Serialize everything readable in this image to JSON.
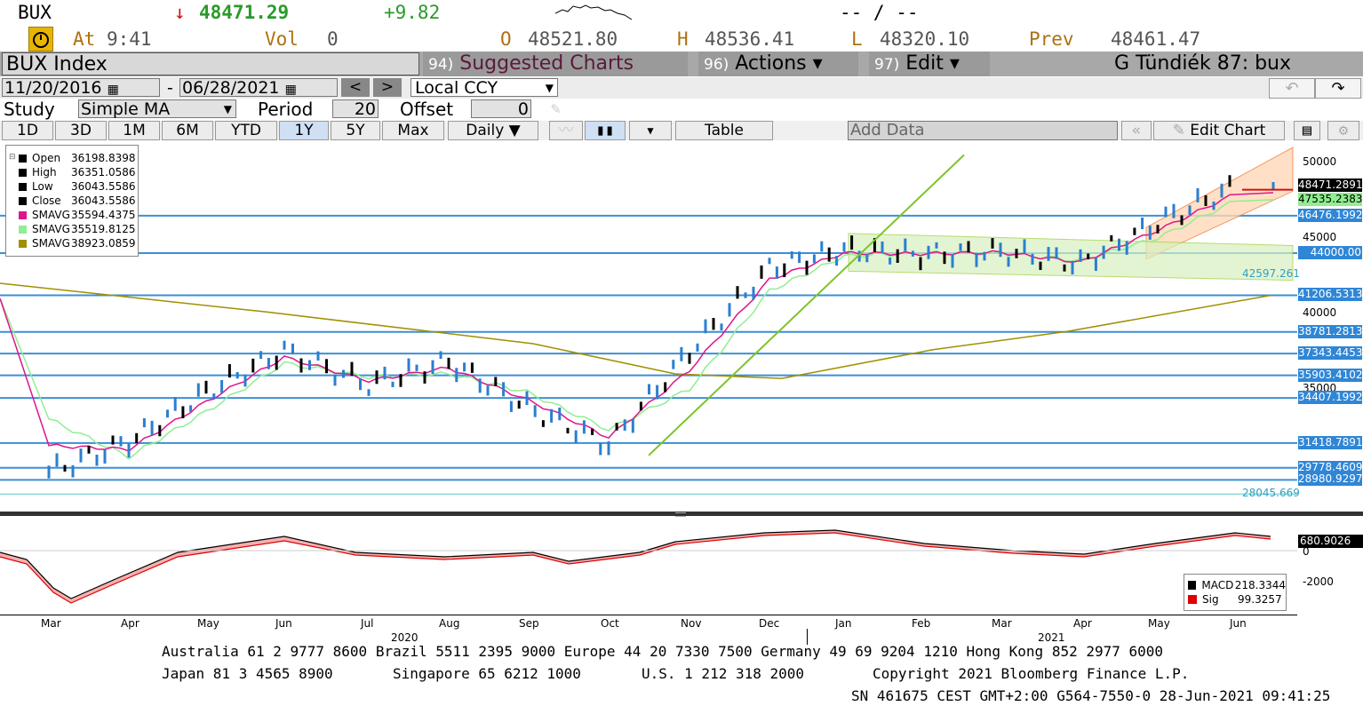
{
  "quote": {
    "ticker": "BUX",
    "arrow": "↓",
    "last": "48471.29",
    "change": "+9.82",
    "bidask": "-- / --",
    "at_label": "At",
    "time": "9:41",
    "vol_label": "Vol",
    "vol": "0",
    "open_label": "O",
    "open": "48521.80",
    "high_label": "H",
    "high": "48536.41",
    "low_label": "L",
    "low": "48320.10",
    "prev_label": "Prev",
    "prev": "48461.47"
  },
  "titlebar": {
    "security": "BUX Index",
    "suggested_num": "94)",
    "suggested": "Suggested Charts",
    "actions_num": "96)",
    "actions": "Actions ▾",
    "edit_num": "97)",
    "edit": "Edit ▾",
    "page_title": "G Tündiék 87: bux"
  },
  "range": {
    "start": "11/20/2016",
    "sep": "-",
    "end": "06/28/2021",
    "prev": "<",
    "next": ">",
    "currency": "Local CCY",
    "undo": "↶",
    "redo": "↷"
  },
  "study": {
    "label": "Study",
    "value": "Simple MA",
    "period_label": "Period",
    "period": "20",
    "offset_label": "Offset",
    "offset": "0"
  },
  "toolbar": {
    "periods": [
      "1D",
      "3D",
      "1M",
      "6M",
      "YTD",
      "1Y",
      "5Y",
      "Max"
    ],
    "active": "1Y",
    "freq": "Daily ▼",
    "table": "Table",
    "add_data": "Add Data",
    "edit_chart": "Edit Chart"
  },
  "legend": [
    {
      "label": "Open",
      "value": "36198.8398",
      "color": "#000000"
    },
    {
      "label": "High",
      "value": "36351.0586",
      "color": "#000000"
    },
    {
      "label": "Low",
      "value": "36043.5586",
      "color": "#000000"
    },
    {
      "label": "Close",
      "value": "36043.5586",
      "color": "#000000"
    },
    {
      "label": "SMAVG",
      "value": "35594.4375",
      "color": "#e0148c"
    },
    {
      "label": "SMAVG",
      "value": "35519.8125",
      "color": "#90ee90"
    },
    {
      "label": "SMAVG",
      "value": "38923.0859",
      "color": "#a09000"
    }
  ],
  "price_axis": [
    "50000",
    "45000",
    "40000",
    "35000"
  ],
  "hlines": [
    {
      "label": "46476.1992",
      "value": 46476.1992
    },
    {
      "label": "44000.00",
      "value": 44000.0
    },
    {
      "label": "41206.5313",
      "value": 41206.5313
    },
    {
      "label": "38781.2813",
      "value": 38781.2813
    },
    {
      "label": "37343.4453",
      "value": 37343.4453
    },
    {
      "label": "35903.4102",
      "value": 35903.4102
    },
    {
      "label": "34407.1992",
      "value": 34407.1992
    },
    {
      "label": "31418.7891",
      "value": 31418.7891
    },
    {
      "label": "29778.4609",
      "value": 29778.4609
    },
    {
      "label": "28980.9297",
      "value": 28980.9297
    }
  ],
  "price_tags": [
    {
      "label": "48471.2891",
      "value": 48471.2891,
      "bg": "#000000"
    },
    {
      "label": "47535.2383",
      "value": 47535.2383,
      "bg": "#90ee90"
    }
  ],
  "float_labels": [
    {
      "label": "42597.261",
      "value": 42597.261
    },
    {
      "label": "28045.669",
      "value": 28045.669
    }
  ],
  "macd": {
    "tag": "680.9026",
    "axis": [
      "0",
      "-2000"
    ],
    "legend": [
      {
        "label": "MACD",
        "value": "218.3344",
        "color": "#000000"
      },
      {
        "label": "Sig",
        "value": "99.3257",
        "color": "#e00000"
      }
    ]
  },
  "months": [
    "Mar",
    "Apr",
    "May",
    "Jun",
    "Jul",
    "Aug",
    "Sep",
    "Oct",
    "Nov",
    "Dec",
    "Jan",
    "Feb",
    "Mar",
    "Apr",
    "May",
    "Jun"
  ],
  "years": [
    "2020",
    "2021"
  ],
  "footer": {
    "line1": "Australia 61 2 9777 8600 Brazil 5511 2395 9000 Europe 44 20 7330 7500 Germany 49 69 9204 1210 Hong Kong 852 2977 6000",
    "line2a": "Japan 81 3 4565 8900",
    "line2b": "Singapore 65 6212 1000",
    "line2c": "U.S. 1 212 318 2000",
    "line2d": "Copyright 2021 Bloomberg Finance L.P.",
    "line3": "SN 461675 CEST GMT+2:00 G564-7550-0 28-Jun-2021 09:41:25"
  },
  "chart_data": {
    "type": "line",
    "title": "BUX Index",
    "x": [
      "Mar",
      "Apr",
      "May",
      "Jun",
      "Jul",
      "Aug",
      "Sep",
      "Oct",
      "Nov",
      "Dec",
      "Jan",
      "Feb",
      "Mar",
      "Apr",
      "May",
      "Jun"
    ],
    "series": [
      {
        "name": "Close",
        "values": [
          29500,
          31500,
          34800,
          37500,
          35300,
          36800,
          33800,
          31300,
          37500,
          43000,
          44200,
          43900,
          44100,
          43300,
          46000,
          48470
        ]
      },
      {
        "name": "SMAVG",
        "values": [
          33000,
          30500,
          33500,
          36700,
          35800,
          36000,
          34800,
          32300,
          35000,
          41500,
          43800,
          44000,
          44000,
          43500,
          45000,
          47535
        ]
      }
    ],
    "ylim": [
      27000,
      51000
    ],
    "grid": false
  }
}
